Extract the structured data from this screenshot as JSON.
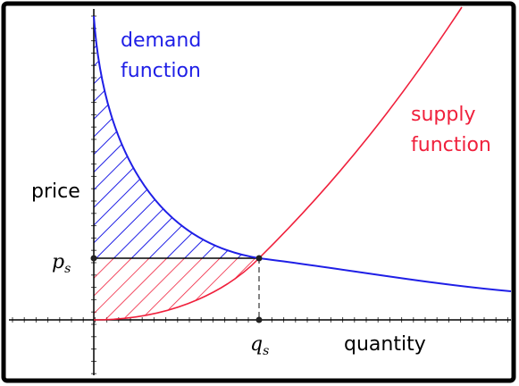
{
  "demand_label": {
    "line1": "demand",
    "line2": "function"
  },
  "supply_label": {
    "line1": "supply",
    "line2": "function"
  },
  "axes": {
    "y_label": "price",
    "x_label": "quantity",
    "price_marker": {
      "base": "p",
      "sub": "s"
    },
    "quantity_marker": {
      "base": "q",
      "sub": "s"
    }
  }
}
